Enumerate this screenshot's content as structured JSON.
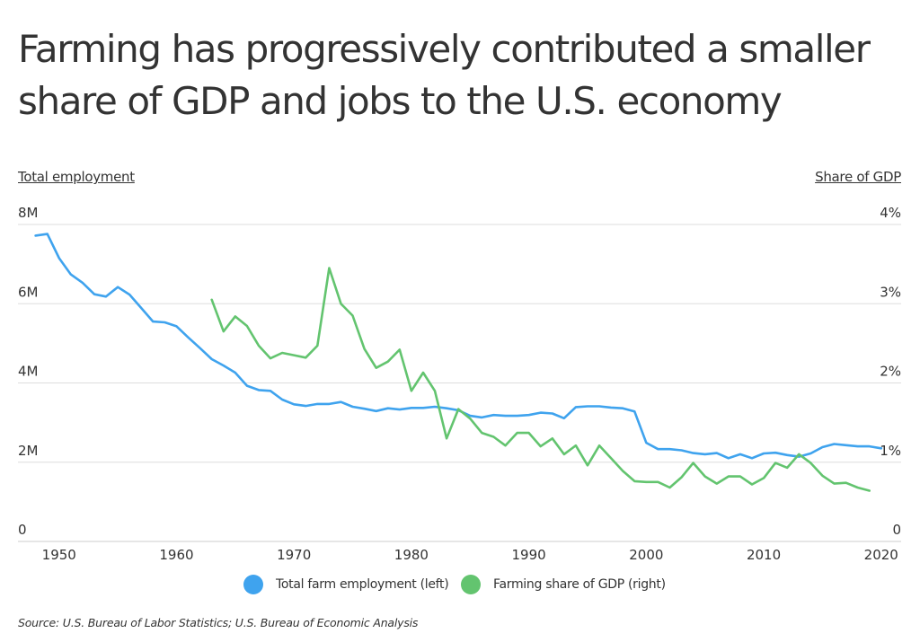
{
  "title": "Farming has progressively contributed a smaller share of GDP and jobs to the U.S. economy",
  "source": "Source:  U.S. Bureau of Labor Statistics;  U.S. Bureau of Economic Analysis",
  "colors": {
    "employment": "#3fa3ee",
    "gdp": "#63c46f",
    "grid": "#dddddd",
    "text": "#333333"
  },
  "legend": {
    "employment": "Total farm employment (left)",
    "gdp": "Farming share of GDP (right)"
  },
  "chart_data": {
    "type": "line",
    "title": "Farming has progressively contributed a smaller share of GDP and jobs to the U.S. economy",
    "left_axis": {
      "label": "Total employment",
      "range": [
        0,
        8000000
      ],
      "ticks": [
        "0",
        "2M",
        "4M",
        "6M",
        "8M"
      ]
    },
    "right_axis": {
      "label": "Share of GDP",
      "range": [
        0,
        4
      ],
      "ticks": [
        "0",
        "1%",
        "2%",
        "3%",
        "4%"
      ]
    },
    "x_axis": {
      "range": [
        1948,
        2020
      ],
      "ticks": [
        "1950",
        "1960",
        "1970",
        "1980",
        "1990",
        "2000",
        "2010",
        "2020"
      ]
    },
    "grid": true,
    "legend_position": "bottom",
    "series": [
      {
        "name": "Total farm employment (left)",
        "axis": "left",
        "x": [
          1948,
          1949,
          1950,
          1951,
          1952,
          1953,
          1954,
          1955,
          1956,
          1957,
          1958,
          1959,
          1960,
          1961,
          1962,
          1963,
          1964,
          1965,
          1966,
          1967,
          1968,
          1969,
          1970,
          1971,
          1972,
          1973,
          1974,
          1975,
          1976,
          1977,
          1978,
          1979,
          1980,
          1981,
          1982,
          1983,
          1984,
          1985,
          1986,
          1987,
          1988,
          1989,
          1990,
          1991,
          1992,
          1993,
          1994,
          1995,
          1996,
          1997,
          1998,
          1999,
          2000,
          2001,
          2002,
          2003,
          2004,
          2005,
          2006,
          2007,
          2008,
          2009,
          2010,
          2011,
          2012,
          2013,
          2014,
          2015,
          2016,
          2017,
          2018,
          2019,
          2020
        ],
        "values": [
          7720000,
          7760000,
          7150000,
          6740000,
          6530000,
          6240000,
          6180000,
          6420000,
          6230000,
          5890000,
          5550000,
          5530000,
          5430000,
          5150000,
          4880000,
          4600000,
          4440000,
          4260000,
          3930000,
          3820000,
          3800000,
          3580000,
          3460000,
          3420000,
          3470000,
          3470000,
          3520000,
          3400000,
          3350000,
          3290000,
          3360000,
          3330000,
          3370000,
          3370000,
          3400000,
          3360000,
          3310000,
          3170000,
          3130000,
          3190000,
          3170000,
          3170000,
          3190000,
          3250000,
          3230000,
          3110000,
          3390000,
          3410000,
          3410000,
          3380000,
          3360000,
          3280000,
          2490000,
          2330000,
          2330000,
          2300000,
          2230000,
          2200000,
          2230000,
          2100000,
          2200000,
          2100000,
          2220000,
          2240000,
          2180000,
          2140000,
          2220000,
          2380000,
          2460000,
          2430000,
          2400000,
          2400000,
          2350000
        ]
      },
      {
        "name": "Farming share of GDP (right)",
        "axis": "right",
        "x": [
          1963,
          1964,
          1965,
          1966,
          1967,
          1968,
          1969,
          1970,
          1971,
          1972,
          1973,
          1974,
          1975,
          1976,
          1977,
          1978,
          1979,
          1980,
          1981,
          1982,
          1983,
          1984,
          1985,
          1986,
          1987,
          1988,
          1989,
          1990,
          1991,
          1992,
          1993,
          1994,
          1995,
          1996,
          1997,
          1998,
          1999,
          2000,
          2001,
          2002,
          2003,
          2004,
          2005,
          2006,
          2007,
          2008,
          2009,
          2010,
          2011,
          2012,
          2013,
          2014,
          2015,
          2016,
          2017,
          2018,
          2019
        ],
        "values": [
          3.05,
          2.65,
          2.84,
          2.72,
          2.47,
          2.31,
          2.38,
          2.35,
          2.32,
          2.47,
          3.45,
          3.0,
          2.85,
          2.43,
          2.19,
          2.27,
          2.42,
          1.9,
          2.13,
          1.9,
          1.3,
          1.67,
          1.55,
          1.37,
          1.32,
          1.21,
          1.37,
          1.37,
          1.2,
          1.3,
          1.1,
          1.21,
          0.96,
          1.21,
          1.05,
          0.89,
          0.76,
          0.75,
          0.75,
          0.68,
          0.81,
          0.99,
          0.82,
          0.73,
          0.82,
          0.82,
          0.72,
          0.8,
          0.99,
          0.93,
          1.1,
          0.99,
          0.83,
          0.73,
          0.74,
          0.68,
          0.64
        ]
      }
    ]
  }
}
